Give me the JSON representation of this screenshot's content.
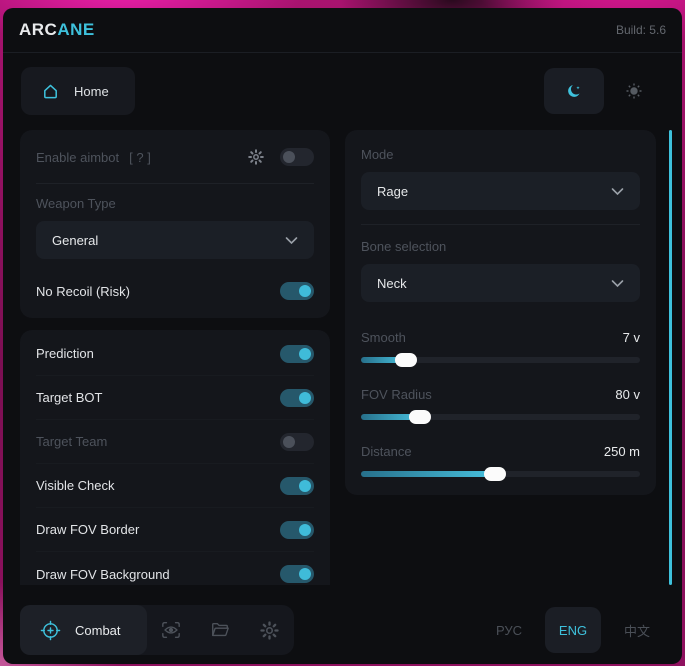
{
  "header": {
    "logo_primary": "ARC",
    "logo_accent": "ANE",
    "build": "Build: 5.6"
  },
  "nav": {
    "home_label": "Home",
    "theme_dark_icon": "moon-icon",
    "theme_light_icon": "sun-icon",
    "theme_active": "dark"
  },
  "panels": {
    "aimbot": {
      "enable_label": "Enable aimbot",
      "help_hint": "[ ? ]",
      "enable_state": "off",
      "weapon_type_label": "Weapon Type",
      "weapon_type_value": "General",
      "no_recoil_label": "No Recoil (Risk)",
      "no_recoil_state": "on"
    },
    "toggles": {
      "items": [
        {
          "label": "Prediction",
          "state": "on"
        },
        {
          "label": "Target BOT",
          "state": "on"
        },
        {
          "label": "Target Team",
          "state": "off"
        },
        {
          "label": "Visible Check",
          "state": "on"
        },
        {
          "label": "Draw FOV Border",
          "state": "on"
        },
        {
          "label": "Draw FOV Background",
          "state": "on"
        }
      ]
    },
    "right": {
      "mode_label": "Mode",
      "mode_value": "Rage",
      "bone_label": "Bone selection",
      "bone_value": "Neck",
      "sliders": [
        {
          "label": "Smooth",
          "value": "7 v",
          "percent": 16
        },
        {
          "label": "FOV Radius",
          "value": "80 v",
          "percent": 21
        },
        {
          "label": "Distance",
          "value": "250 m",
          "percent": 48
        }
      ]
    }
  },
  "footer": {
    "combat_label": "Combat",
    "tool_icons": [
      "eye-scan-icon",
      "folder-icon",
      "gear-icon"
    ],
    "languages": [
      {
        "label": "РУС",
        "active": false
      },
      {
        "label": "ENG",
        "active": true
      },
      {
        "label": "中文",
        "active": false
      }
    ]
  },
  "colors": {
    "accent": "#3ec1dc",
    "window_bg": "#0d0e11",
    "panel_bg": "#14161b",
    "backdrop_magenta": "#d81691"
  }
}
